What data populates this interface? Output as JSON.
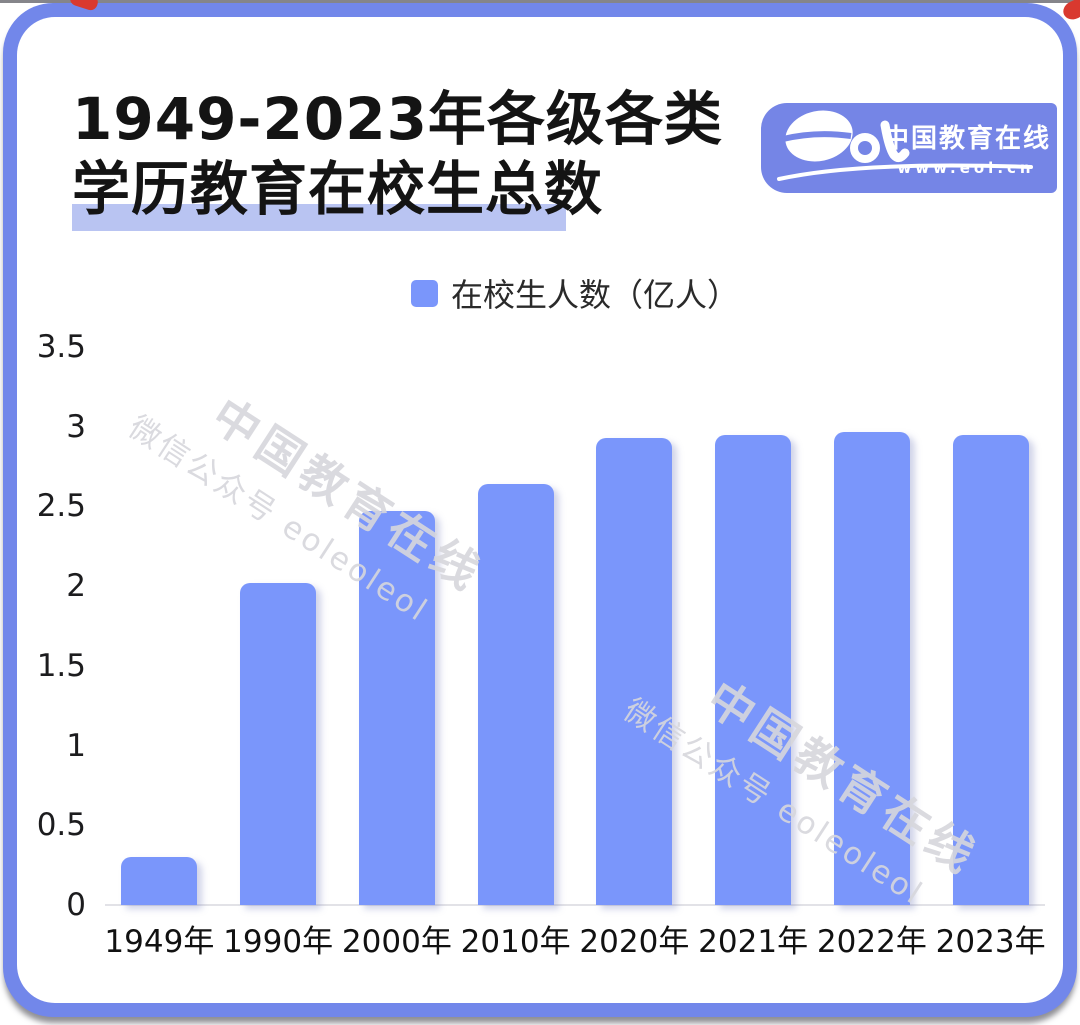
{
  "title": {
    "line1": "1949-2023年各级各类",
    "line2": "学历教育在校生总数"
  },
  "logo": {
    "brand": "eol",
    "name": "中国教育在线",
    "url": "www.eol.cn"
  },
  "legend": {
    "label": "在校生人数（亿人）"
  },
  "watermark": {
    "line1": "中国教育在线",
    "line2": "微信公众号 eoleoleol"
  },
  "colors": {
    "bar": "#7a96fb",
    "frame": "#7287ea",
    "badge": "#7585e6",
    "title_highlight": "#b9c4f2",
    "axis_line": "#e2e2e7",
    "watermark": "#d6d6db"
  },
  "chart_data": {
    "type": "bar",
    "title": "1949-2023年各级各类学历教育在校生总数",
    "series_name": "在校生人数（亿人）",
    "categories": [
      "1949年",
      "1990年",
      "2000年",
      "2010年",
      "2020年",
      "2021年",
      "2022年",
      "2023年"
    ],
    "values": [
      0.3,
      2.02,
      2.47,
      2.64,
      2.93,
      2.95,
      2.97,
      2.95
    ],
    "xlabel": "",
    "ylabel": "在校生人数（亿人）",
    "ylim": [
      0,
      3.5
    ],
    "yticks": [
      0,
      0.5,
      1,
      1.5,
      2,
      2.5,
      3,
      3.5
    ],
    "grid": false,
    "legend_position": "top-center"
  }
}
